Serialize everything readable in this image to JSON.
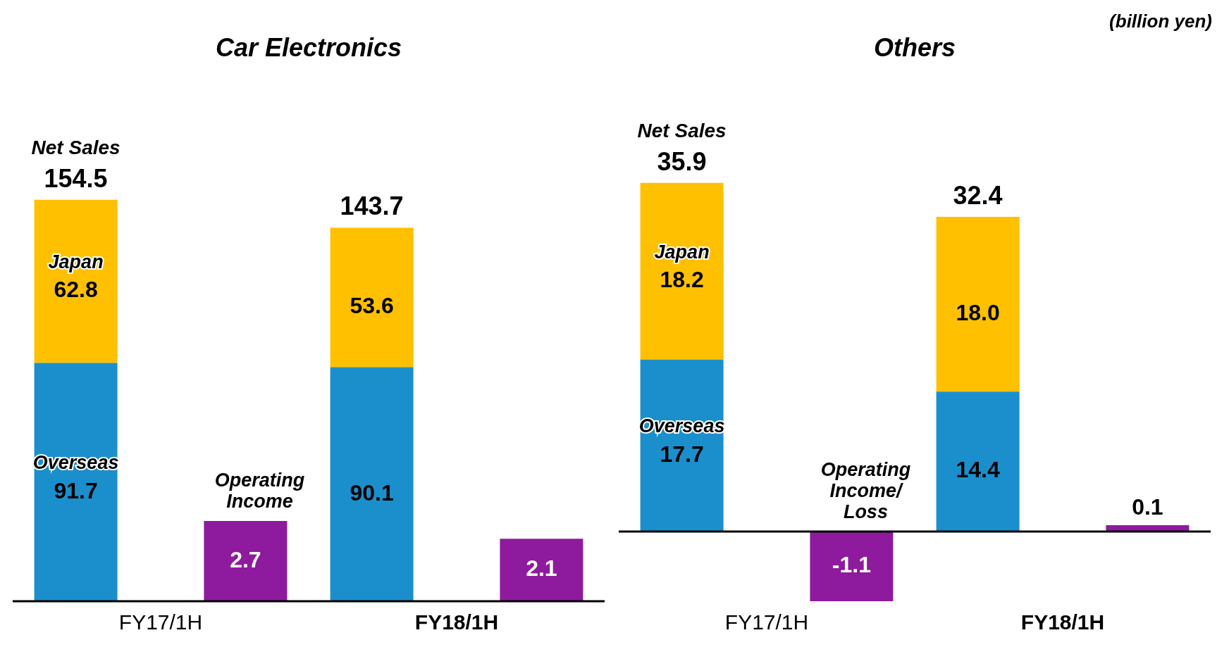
{
  "chart_data": [
    {
      "type": "bar",
      "title": "Car Electronics",
      "categories": [
        "FY17/1H",
        "FY18/1H"
      ],
      "stacked": true,
      "legend": false,
      "grid": false,
      "totals": [
        "154.5",
        "143.7"
      ],
      "series": [
        {
          "name": "Overseas",
          "color": "#1b8fcc",
          "values": [
            91.7,
            90.1
          ],
          "value_labels": [
            "91.7",
            "90.1"
          ]
        },
        {
          "name": "Japan",
          "color": "#ffc000",
          "values": [
            62.8,
            53.6
          ],
          "value_labels": [
            "62.8",
            "53.6"
          ]
        },
        {
          "name": "Operating Income",
          "color": "#8e1a9e",
          "values": [
            2.7,
            2.1
          ],
          "value_labels": [
            "2.7",
            "2.1"
          ],
          "axis": "y2"
        }
      ],
      "annotations": [
        "Net Sales"
      ]
    },
    {
      "type": "bar",
      "title": "Others",
      "categories": [
        "FY17/1H",
        "FY18/1H"
      ],
      "stacked": true,
      "legend": false,
      "grid": false,
      "totals": [
        "35.9",
        "32.4"
      ],
      "series": [
        {
          "name": "Overseas",
          "color": "#1b8fcc",
          "values": [
            17.7,
            14.4
          ],
          "value_labels": [
            "17.7",
            "14.4"
          ]
        },
        {
          "name": "Japan",
          "color": "#ffc000",
          "values": [
            18.2,
            18.0
          ],
          "value_labels": [
            "18.2",
            "18.0"
          ]
        },
        {
          "name": "Operating Income/ Loss",
          "color": "#8e1a9e",
          "values": [
            -1.1,
            0.1
          ],
          "value_labels": [
            "-1.1",
            "0.1"
          ],
          "axis": "y2"
        }
      ],
      "annotations": [
        "Net Sales",
        "(billion yen)"
      ]
    }
  ]
}
